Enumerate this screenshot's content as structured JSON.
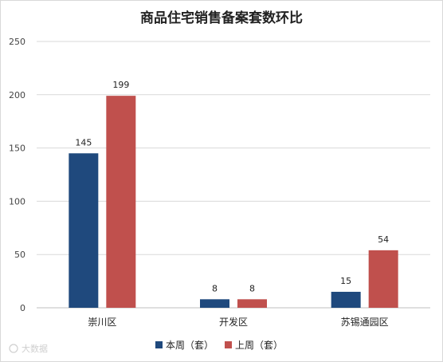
{
  "chart_data": {
    "type": "bar",
    "title": "商品住宅销售备案套数环比",
    "categories": [
      "崇川区",
      "开发区",
      "苏锡通园区"
    ],
    "series": [
      {
        "name": "本周（套）",
        "color": "#1f497d",
        "values": [
          145,
          8,
          15
        ]
      },
      {
        "name": "上周（套）",
        "color": "#c0504d",
        "values": [
          199,
          8,
          54
        ]
      }
    ],
    "ylim": [
      0,
      250
    ],
    "yticks": [
      0,
      50,
      100,
      150,
      200,
      250
    ],
    "grid": true,
    "legend": "bottom",
    "xlabel": "",
    "ylabel": ""
  },
  "watermark": "大数据"
}
